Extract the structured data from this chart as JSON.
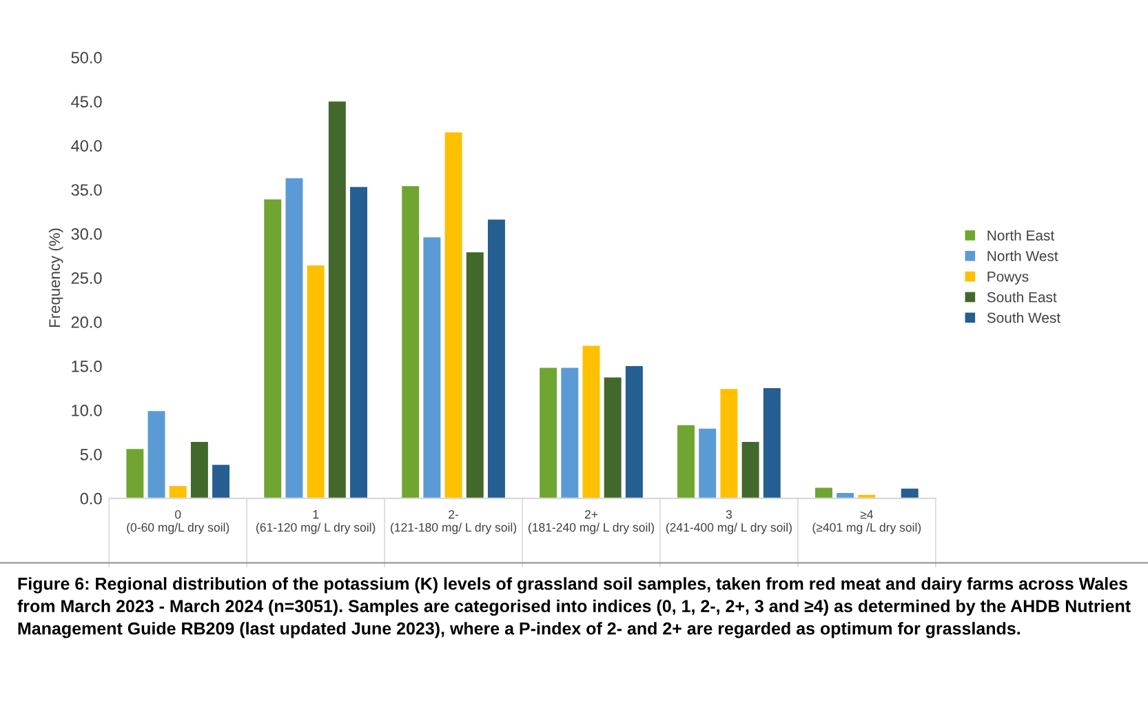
{
  "chart_data": {
    "type": "bar",
    "ylabel": "Frequency (%)",
    "categories": [
      "0\n(0-60 mg/L dry soil)",
      "1\n(61-120 mg/ L dry soil)",
      "2-\n(121-180 mg/ L dry soil)",
      "2+\n(181-240 mg/ L dry soil)",
      "3\n(241-400 mg/ L dry soil)",
      "≥4\n(≥401 mg /L dry soil)"
    ],
    "series": [
      {
        "name": "North East",
        "color": "#70a531",
        "values": [
          5.6,
          33.9,
          35.4,
          14.8,
          8.3,
          1.2
        ]
      },
      {
        "name": "North West",
        "color": "#5b9bd5",
        "values": [
          9.9,
          36.3,
          29.6,
          14.8,
          7.9,
          0.6
        ]
      },
      {
        "name": "Powys",
        "color": "#ffc000",
        "values": [
          1.4,
          26.4,
          41.5,
          17.3,
          12.4,
          0.4
        ]
      },
      {
        "name": "South East",
        "color": "#43682b",
        "values": [
          6.4,
          45.0,
          27.9,
          13.7,
          6.4,
          0
        ]
      },
      {
        "name": "South West",
        "color": "#255e91",
        "values": [
          3.8,
          35.3,
          31.6,
          15.0,
          12.5,
          1.1
        ]
      }
    ],
    "ylim": [
      0,
      50
    ],
    "yticks": [
      {
        "value": 0,
        "label": "0.0"
      },
      {
        "value": 5,
        "label": "5.0"
      },
      {
        "value": 10,
        "label": "10.0"
      },
      {
        "value": 15,
        "label": "15.0"
      },
      {
        "value": 20,
        "label": "20.0"
      },
      {
        "value": 25,
        "label": "25.0"
      },
      {
        "value": 30,
        "label": "30.0"
      },
      {
        "value": 35,
        "label": "35.0"
      },
      {
        "value": 40,
        "label": "40.0"
      },
      {
        "value": 45,
        "label": "45.0"
      },
      {
        "value": 50,
        "label": "50.0"
      }
    ],
    "grid": false,
    "legend": "right",
    "annotations": [
      "Figure 6: Regional distribution of the potassium (K) levels of grassland soil samples, taken from red meat and dairy farms across Wales from March 2023 - March 2024 (n=3051). Samples are categorised into indices (0, 1, 2-, 2+, 3 and ≥4) as determined by the AHDB Nutrient Management Guide RB209 (last updated June 2023), where a P-index of 2- and 2+ are regarded as optimum for grasslands."
    ]
  }
}
